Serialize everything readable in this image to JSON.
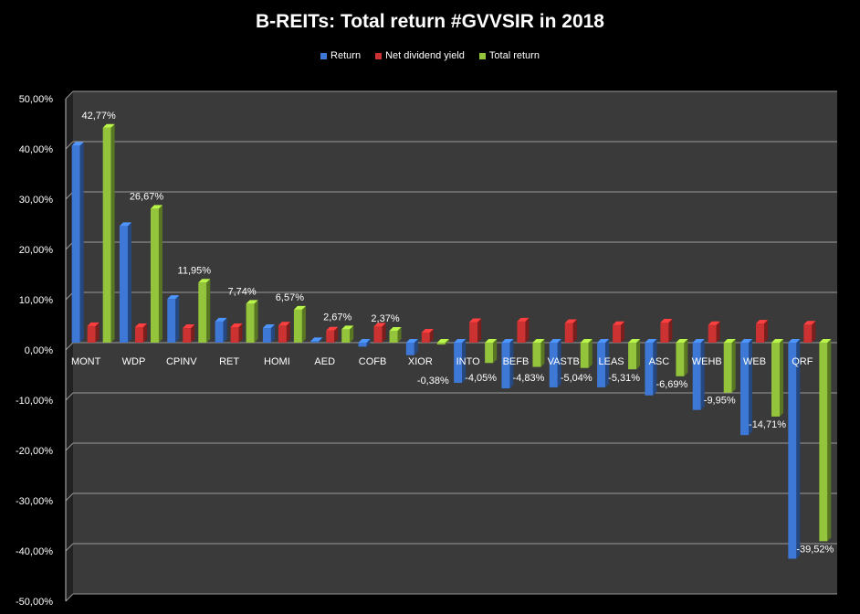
{
  "chart_data": {
    "type": "bar",
    "title": "B-REITs: Total return #GVVSIR in 2018",
    "categories": [
      "MONT",
      "WDP",
      "CPINV",
      "RET",
      "HOMI",
      "AED",
      "COFB",
      "XIOR",
      "INTO",
      "BEFB",
      "VASTB",
      "LEAS",
      "ASC",
      "WEHB",
      "WEB",
      "QRF"
    ],
    "series": [
      {
        "name": "Return",
        "color": "#3e78d6",
        "values": [
          39.2,
          23.2,
          8.7,
          4.2,
          2.9,
          0.3,
          -0.8,
          -2.5,
          -8.0,
          -9.1,
          -8.9,
          -8.9,
          -10.5,
          -13.4,
          -18.4,
          -43.0
        ]
      },
      {
        "name": "Net dividend yield",
        "color": "#cc3232",
        "values": [
          3.3,
          3.1,
          2.9,
          3.1,
          3.4,
          2.4,
          3.2,
          2.0,
          4.1,
          4.2,
          3.9,
          3.5,
          4.0,
          3.5,
          3.8,
          3.6
        ]
      },
      {
        "name": "Total return",
        "color": "#94c43b",
        "values": [
          42.77,
          26.67,
          11.95,
          7.74,
          6.57,
          2.67,
          2.37,
          -0.38,
          -4.05,
          -4.83,
          -5.04,
          -5.31,
          -6.69,
          -9.95,
          -14.71,
          -39.52
        ]
      }
    ],
    "data_labels": [
      "42,77%",
      "26,67%",
      "11,95%",
      "7,74%",
      "6,57%",
      "2,67%",
      "2,37%",
      "-0,38%",
      "-4,05%",
      "-4,83%",
      "-5,04%",
      "-5,31%",
      "-6,69%",
      "-9,95%",
      "-14,71%",
      "-39,52%"
    ],
    "y_ticks": [
      "50,00%",
      "40,00%",
      "30,00%",
      "20,00%",
      "10,00%",
      "0,00%",
      "-10,00%",
      "-20,00%",
      "-30,00%",
      "-40,00%",
      "-50,00%"
    ],
    "ylim": [
      -50,
      50
    ],
    "grid": true,
    "legend_position": "top"
  }
}
